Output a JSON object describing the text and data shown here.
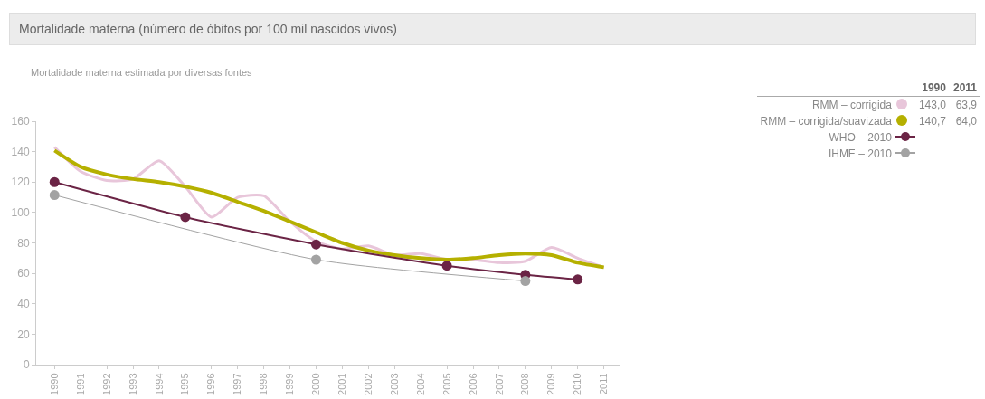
{
  "chart_data": {
    "type": "line",
    "title": "Mortalidade materna (número de óbitos por 100 mil nascidos vivos)",
    "subtitle": "Mortalidade materna estimada por diversas fontes",
    "x": [
      1990,
      1991,
      1992,
      1993,
      1994,
      1995,
      1996,
      1997,
      1998,
      1999,
      2000,
      2001,
      2002,
      2003,
      2004,
      2005,
      2006,
      2007,
      2008,
      2009,
      2010,
      2011
    ],
    "series": [
      {
        "name": "RMM – corrigida",
        "color": "#e8c6da",
        "marker": "none",
        "values": [
          143,
          127,
          121,
          122,
          134,
          117,
          97,
          110,
          111,
          94,
          81,
          76,
          78,
          72,
          73,
          69,
          69,
          67,
          68,
          77,
          70,
          63.9
        ]
      },
      {
        "name": "RMM – corrigida/suavizada",
        "color": "#b5b000",
        "marker": "none",
        "values": [
          140.7,
          130,
          125,
          122,
          120,
          117,
          113,
          107,
          101,
          94,
          87,
          80,
          75,
          72,
          70,
          69,
          70,
          72,
          73,
          72,
          67,
          64
        ]
      },
      {
        "name": "WHO – 2010",
        "color": "#6b2445",
        "marker": "circle",
        "x": [
          1990,
          1995,
          2000,
          2005,
          2008,
          2010
        ],
        "values": [
          120,
          97,
          79,
          65,
          59,
          56
        ]
      },
      {
        "name": "IHME – 2010",
        "color": "#a3a3a3",
        "marker": "circle",
        "x": [
          1990,
          2000,
          2008
        ],
        "values": [
          111.5,
          69,
          55
        ]
      }
    ],
    "annotations": [
      "1990",
      "2011",
      "143,0",
      "63,9",
      "140,7",
      "64,0"
    ],
    "xlim": [
      1989.3,
      2011.6
    ],
    "xticks": [
      1990,
      1991,
      1992,
      1993,
      1994,
      1995,
      1996,
      1997,
      1998,
      1999,
      2000,
      2001,
      2002,
      2003,
      2004,
      2005,
      2006,
      2007,
      2008,
      2009,
      2010,
      2011
    ],
    "ylim": [
      0,
      160
    ],
    "yticks": [
      0,
      20,
      40,
      60,
      80,
      100,
      120,
      140,
      160
    ],
    "grid": false,
    "legend": "top right"
  }
}
